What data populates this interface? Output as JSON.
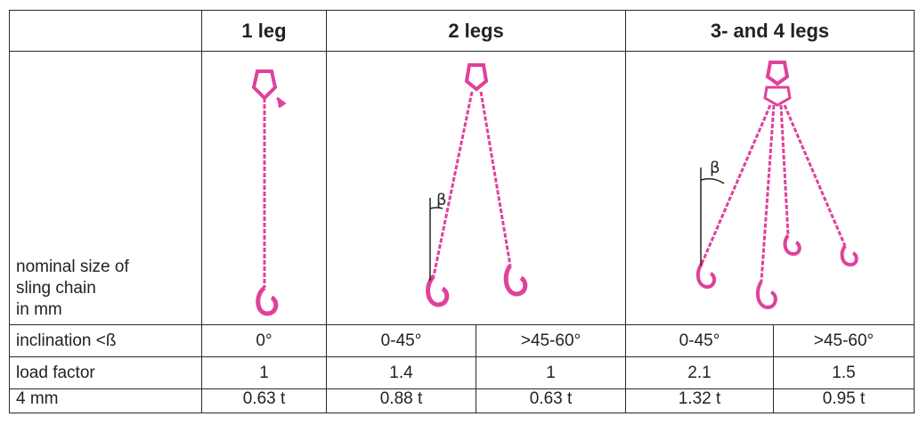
{
  "header": {
    "col_1leg": "1 leg",
    "col_2legs": "2 legs",
    "col_34legs": "3- and 4 legs"
  },
  "illustration_label": {
    "line1": "nominal size of",
    "line2": "sling chain",
    "line3": "in mm"
  },
  "angle_symbol": "β",
  "rows": [
    {
      "label": "inclination <ß",
      "values": [
        "0°",
        "0-45°",
        ">45-60°",
        "0-45°",
        ">45-60°"
      ]
    },
    {
      "label": "load factor",
      "values": [
        "1",
        "1.4",
        "1",
        "2.1",
        "1.5"
      ]
    },
    {
      "label": "4 mm",
      "values": [
        "0.63 t",
        "0.88 t",
        "0.63 t",
        "1.32 t",
        "0.95 t"
      ]
    }
  ],
  "colors": {
    "chain": "#e0419a",
    "border": "#2a2a2a"
  }
}
